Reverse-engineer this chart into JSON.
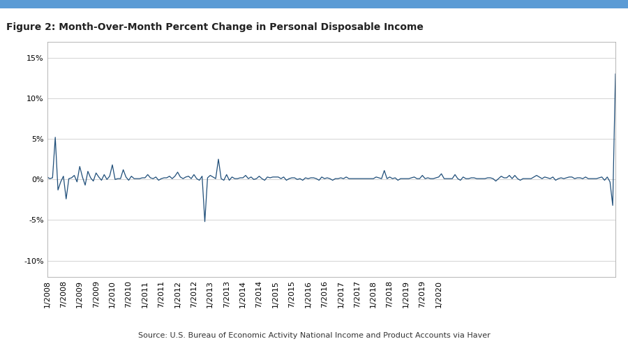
{
  "title": "Figure 2: Month-Over-Month Percent Change in Personal Disposable Income",
  "source_text": "Source: U.S. Bureau of Economic Activity National Income and Product Accounts via Haver",
  "line_color": "#1f4e79",
  "background_color": "#ffffff",
  "header_bar_color": "#5b9bd5",
  "ylim": [
    -0.12,
    0.17
  ],
  "yticks": [
    -0.1,
    -0.05,
    0.0,
    0.05,
    0.1,
    0.15
  ],
  "ytick_labels": [
    "-10%",
    "-5%",
    "0%",
    "5%",
    "10%",
    "15%"
  ],
  "title_fontsize": 10,
  "tick_fontsize": 8,
  "values": [
    0.003,
    0.001,
    0.002,
    0.052,
    -0.013,
    -0.003,
    0.004,
    -0.024,
    0.001,
    0.002,
    0.005,
    -0.003,
    0.016,
    0.003,
    -0.007,
    0.01,
    0.002,
    -0.002,
    0.008,
    0.003,
    -0.001,
    0.006,
    0.0,
    0.004,
    0.018,
    0.0,
    0.001,
    0.001,
    0.012,
    0.003,
    -0.001,
    0.004,
    0.001,
    0.001,
    0.001,
    0.002,
    0.002,
    0.006,
    0.002,
    0.001,
    0.003,
    -0.001,
    0.001,
    0.002,
    0.002,
    0.004,
    0.001,
    0.004,
    0.009,
    0.003,
    0.001,
    0.003,
    0.004,
    0.001,
    0.006,
    0.001,
    -0.001,
    0.004,
    -0.052,
    0.002,
    0.005,
    0.003,
    0.001,
    0.025,
    0.001,
    -0.001,
    0.006,
    -0.001,
    0.003,
    0.001,
    0.001,
    0.002,
    0.002,
    0.005,
    0.001,
    0.003,
    0.0,
    0.001,
    0.004,
    0.001,
    -0.001,
    0.003,
    0.002,
    0.003,
    0.003,
    0.003,
    0.001,
    0.003,
    -0.001,
    0.001,
    0.002,
    0.002,
    0.0,
    0.001,
    -0.001,
    0.002,
    0.001,
    0.002,
    0.002,
    0.001,
    -0.001,
    0.003,
    0.001,
    0.002,
    0.001,
    -0.001,
    0.001,
    0.001,
    0.002,
    0.001,
    0.003,
    0.001,
    0.001,
    0.001,
    0.001,
    0.001,
    0.001,
    0.001,
    0.001,
    0.001,
    0.001,
    0.003,
    0.002,
    0.001,
    0.011,
    0.001,
    0.003,
    0.001,
    0.002,
    -0.001,
    0.001,
    0.001,
    0.001,
    0.001,
    0.002,
    0.003,
    0.001,
    0.001,
    0.005,
    0.001,
    0.002,
    0.001,
    0.001,
    0.002,
    0.003,
    0.007,
    0.001,
    0.001,
    0.001,
    0.001,
    0.006,
    0.001,
    -0.001,
    0.003,
    0.001,
    0.001,
    0.002,
    0.002,
    0.001,
    0.001,
    0.001,
    0.001,
    0.002,
    0.002,
    0.001,
    -0.002,
    0.001,
    0.004,
    0.002,
    0.002,
    0.005,
    0.001,
    0.005,
    0.001,
    -0.001,
    0.001,
    0.001,
    0.001,
    0.001,
    0.003,
    0.005,
    0.003,
    0.001,
    0.003,
    0.002,
    0.001,
    0.003,
    -0.001,
    0.001,
    0.002,
    0.001,
    0.002,
    0.003,
    0.003,
    0.001,
    0.002,
    0.002,
    0.001,
    0.003,
    0.001,
    0.001,
    0.001,
    0.001,
    0.002,
    0.003,
    -0.001,
    0.003,
    -0.003,
    -0.032,
    0.13
  ],
  "x_tick_positions": [
    0,
    6,
    12,
    18,
    24,
    30,
    36,
    42,
    48,
    54,
    60,
    66,
    72,
    78,
    84,
    90,
    96,
    102,
    108,
    114,
    120,
    126,
    132,
    138,
    144
  ],
  "x_tick_labels": [
    "1/2008",
    "7/2008",
    "1/2009",
    "7/2009",
    "1/2010",
    "7/2010",
    "1/2011",
    "7/2011",
    "1/2012",
    "7/2012",
    "1/2013",
    "7/2013",
    "1/2014",
    "7/2014",
    "1/2015",
    "7/2015",
    "1/2016",
    "7/2016",
    "1/2017",
    "7/2017",
    "1/2018",
    "7/2018",
    "1/2019",
    "7/2019",
    "1/2020"
  ]
}
